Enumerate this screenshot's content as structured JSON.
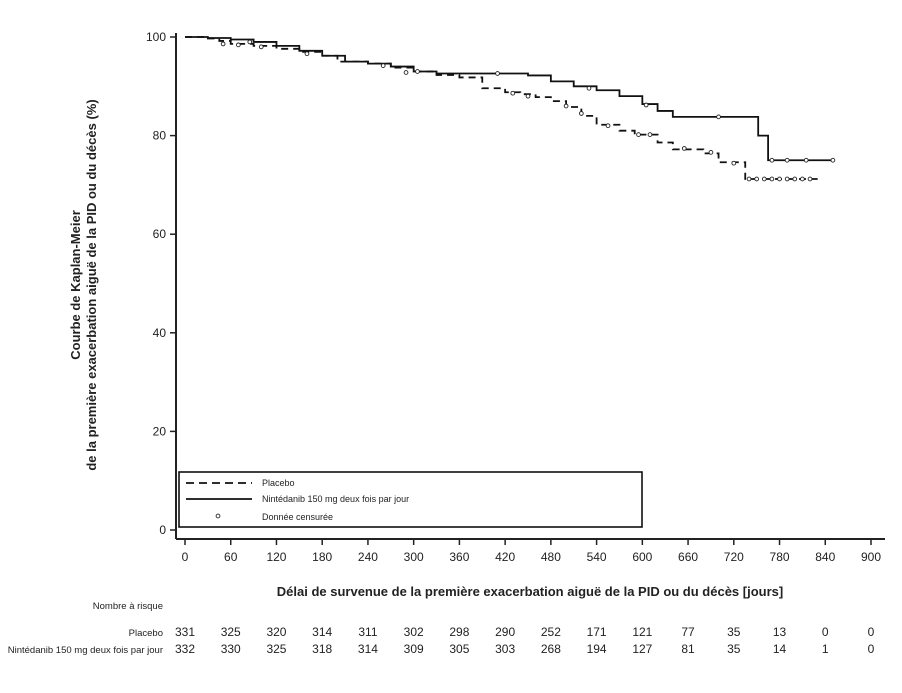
{
  "chart_data": {
    "type": "line",
    "subtype": "kaplan-meier",
    "ylabel_line1": "Courbe de Kaplan-Meier",
    "ylabel_line2": "de la première exacerbation aiguë de la PID ou du décès (%)",
    "xlabel": "Délai de survenue de la première exacerbation aiguë de la PID ou du décès [jours]",
    "xlim": [
      0,
      900
    ],
    "ylim": [
      0,
      100
    ],
    "x_ticks": [
      0,
      60,
      120,
      180,
      240,
      300,
      360,
      420,
      480,
      540,
      600,
      660,
      720,
      780,
      840,
      900
    ],
    "y_ticks": [
      0,
      20,
      40,
      60,
      80,
      100
    ],
    "legend": {
      "placement": "bottom-left",
      "entries": [
        {
          "label": "Placebo",
          "style": "dashed"
        },
        {
          "label": "Nintédanib 150 mg deux fois par jour",
          "style": "solid"
        },
        {
          "label": "Donnée censurée",
          "style": "marker"
        }
      ]
    },
    "series": [
      {
        "name": "Placebo",
        "style": "dashed",
        "steps": [
          [
            0,
            100
          ],
          [
            30,
            99.7
          ],
          [
            45,
            99.2
          ],
          [
            60,
            98.6
          ],
          [
            90,
            98.2
          ],
          [
            120,
            97.6
          ],
          [
            150,
            97.0
          ],
          [
            180,
            96.2
          ],
          [
            200,
            95.0
          ],
          [
            240,
            94.6
          ],
          [
            270,
            93.8
          ],
          [
            300,
            93.0
          ],
          [
            330,
            92.3
          ],
          [
            360,
            91.8
          ],
          [
            390,
            89.6
          ],
          [
            420,
            88.8
          ],
          [
            440,
            88.4
          ],
          [
            460,
            87.8
          ],
          [
            480,
            87.0
          ],
          [
            500,
            85.8
          ],
          [
            520,
            84.0
          ],
          [
            540,
            82.2
          ],
          [
            570,
            81.0
          ],
          [
            590,
            80.2
          ],
          [
            620,
            78.6
          ],
          [
            640,
            77.2
          ],
          [
            680,
            76.4
          ],
          [
            700,
            74.6
          ],
          [
            735,
            71.2
          ],
          [
            830,
            71.2
          ]
        ],
        "censored": [
          [
            50,
            98.6
          ],
          [
            70,
            98.4
          ],
          [
            100,
            98.0
          ],
          [
            160,
            96.6
          ],
          [
            290,
            92.8
          ],
          [
            430,
            88.6
          ],
          [
            450,
            88.0
          ],
          [
            500,
            86.0
          ],
          [
            520,
            84.5
          ],
          [
            555,
            82.0
          ],
          [
            595,
            80.2
          ],
          [
            610,
            80.2
          ],
          [
            655,
            77.4
          ],
          [
            690,
            76.6
          ],
          [
            720,
            74.4
          ],
          [
            740,
            71.2
          ],
          [
            750,
            71.2
          ],
          [
            760,
            71.2
          ],
          [
            770,
            71.2
          ],
          [
            780,
            71.2
          ],
          [
            790,
            71.2
          ],
          [
            800,
            71.2
          ],
          [
            810,
            71.2
          ],
          [
            820,
            71.2
          ]
        ]
      },
      {
        "name": "Nintédanib 150 mg deux fois par jour",
        "style": "solid",
        "steps": [
          [
            0,
            100
          ],
          [
            30,
            99.8
          ],
          [
            60,
            99.5
          ],
          [
            90,
            99.0
          ],
          [
            120,
            98.2
          ],
          [
            150,
            97.2
          ],
          [
            180,
            96.2
          ],
          [
            210,
            95.0
          ],
          [
            240,
            94.6
          ],
          [
            270,
            94.0
          ],
          [
            300,
            93.0
          ],
          [
            330,
            92.6
          ],
          [
            360,
            92.6
          ],
          [
            420,
            92.6
          ],
          [
            450,
            92.2
          ],
          [
            480,
            91.0
          ],
          [
            510,
            90.0
          ],
          [
            540,
            89.2
          ],
          [
            570,
            88.0
          ],
          [
            600,
            86.4
          ],
          [
            620,
            85.0
          ],
          [
            640,
            83.8
          ],
          [
            700,
            83.8
          ],
          [
            752,
            80.0
          ],
          [
            765,
            75.0
          ],
          [
            850,
            75.0
          ]
        ],
        "censored": [
          [
            85,
            99.0
          ],
          [
            260,
            94.2
          ],
          [
            305,
            93.0
          ],
          [
            410,
            92.6
          ],
          [
            530,
            89.6
          ],
          [
            605,
            86.2
          ],
          [
            700,
            83.8
          ],
          [
            770,
            75.0
          ],
          [
            790,
            75.0
          ],
          [
            815,
            75.0
          ],
          [
            850,
            75.0
          ]
        ]
      }
    ],
    "risk_table": {
      "title": "Nombre à risque",
      "timepoints": [
        0,
        60,
        120,
        180,
        240,
        300,
        360,
        420,
        480,
        540,
        600,
        660,
        720,
        780,
        840,
        900
      ],
      "rows": [
        {
          "label": "Placebo",
          "values": [
            "331",
            "325",
            "320",
            "314",
            "311",
            "302",
            "298",
            "290",
            "252",
            "171",
            "121",
            "77",
            "35",
            "13",
            "0",
            "0"
          ]
        },
        {
          "label": "Nintédanib 150 mg deux fois par jour",
          "values": [
            "332",
            "330",
            "325",
            "318",
            "314",
            "309",
            "305",
            "303",
            "268",
            "194",
            "127",
            "81",
            "35",
            "14",
            "1",
            "0"
          ]
        }
      ]
    }
  }
}
